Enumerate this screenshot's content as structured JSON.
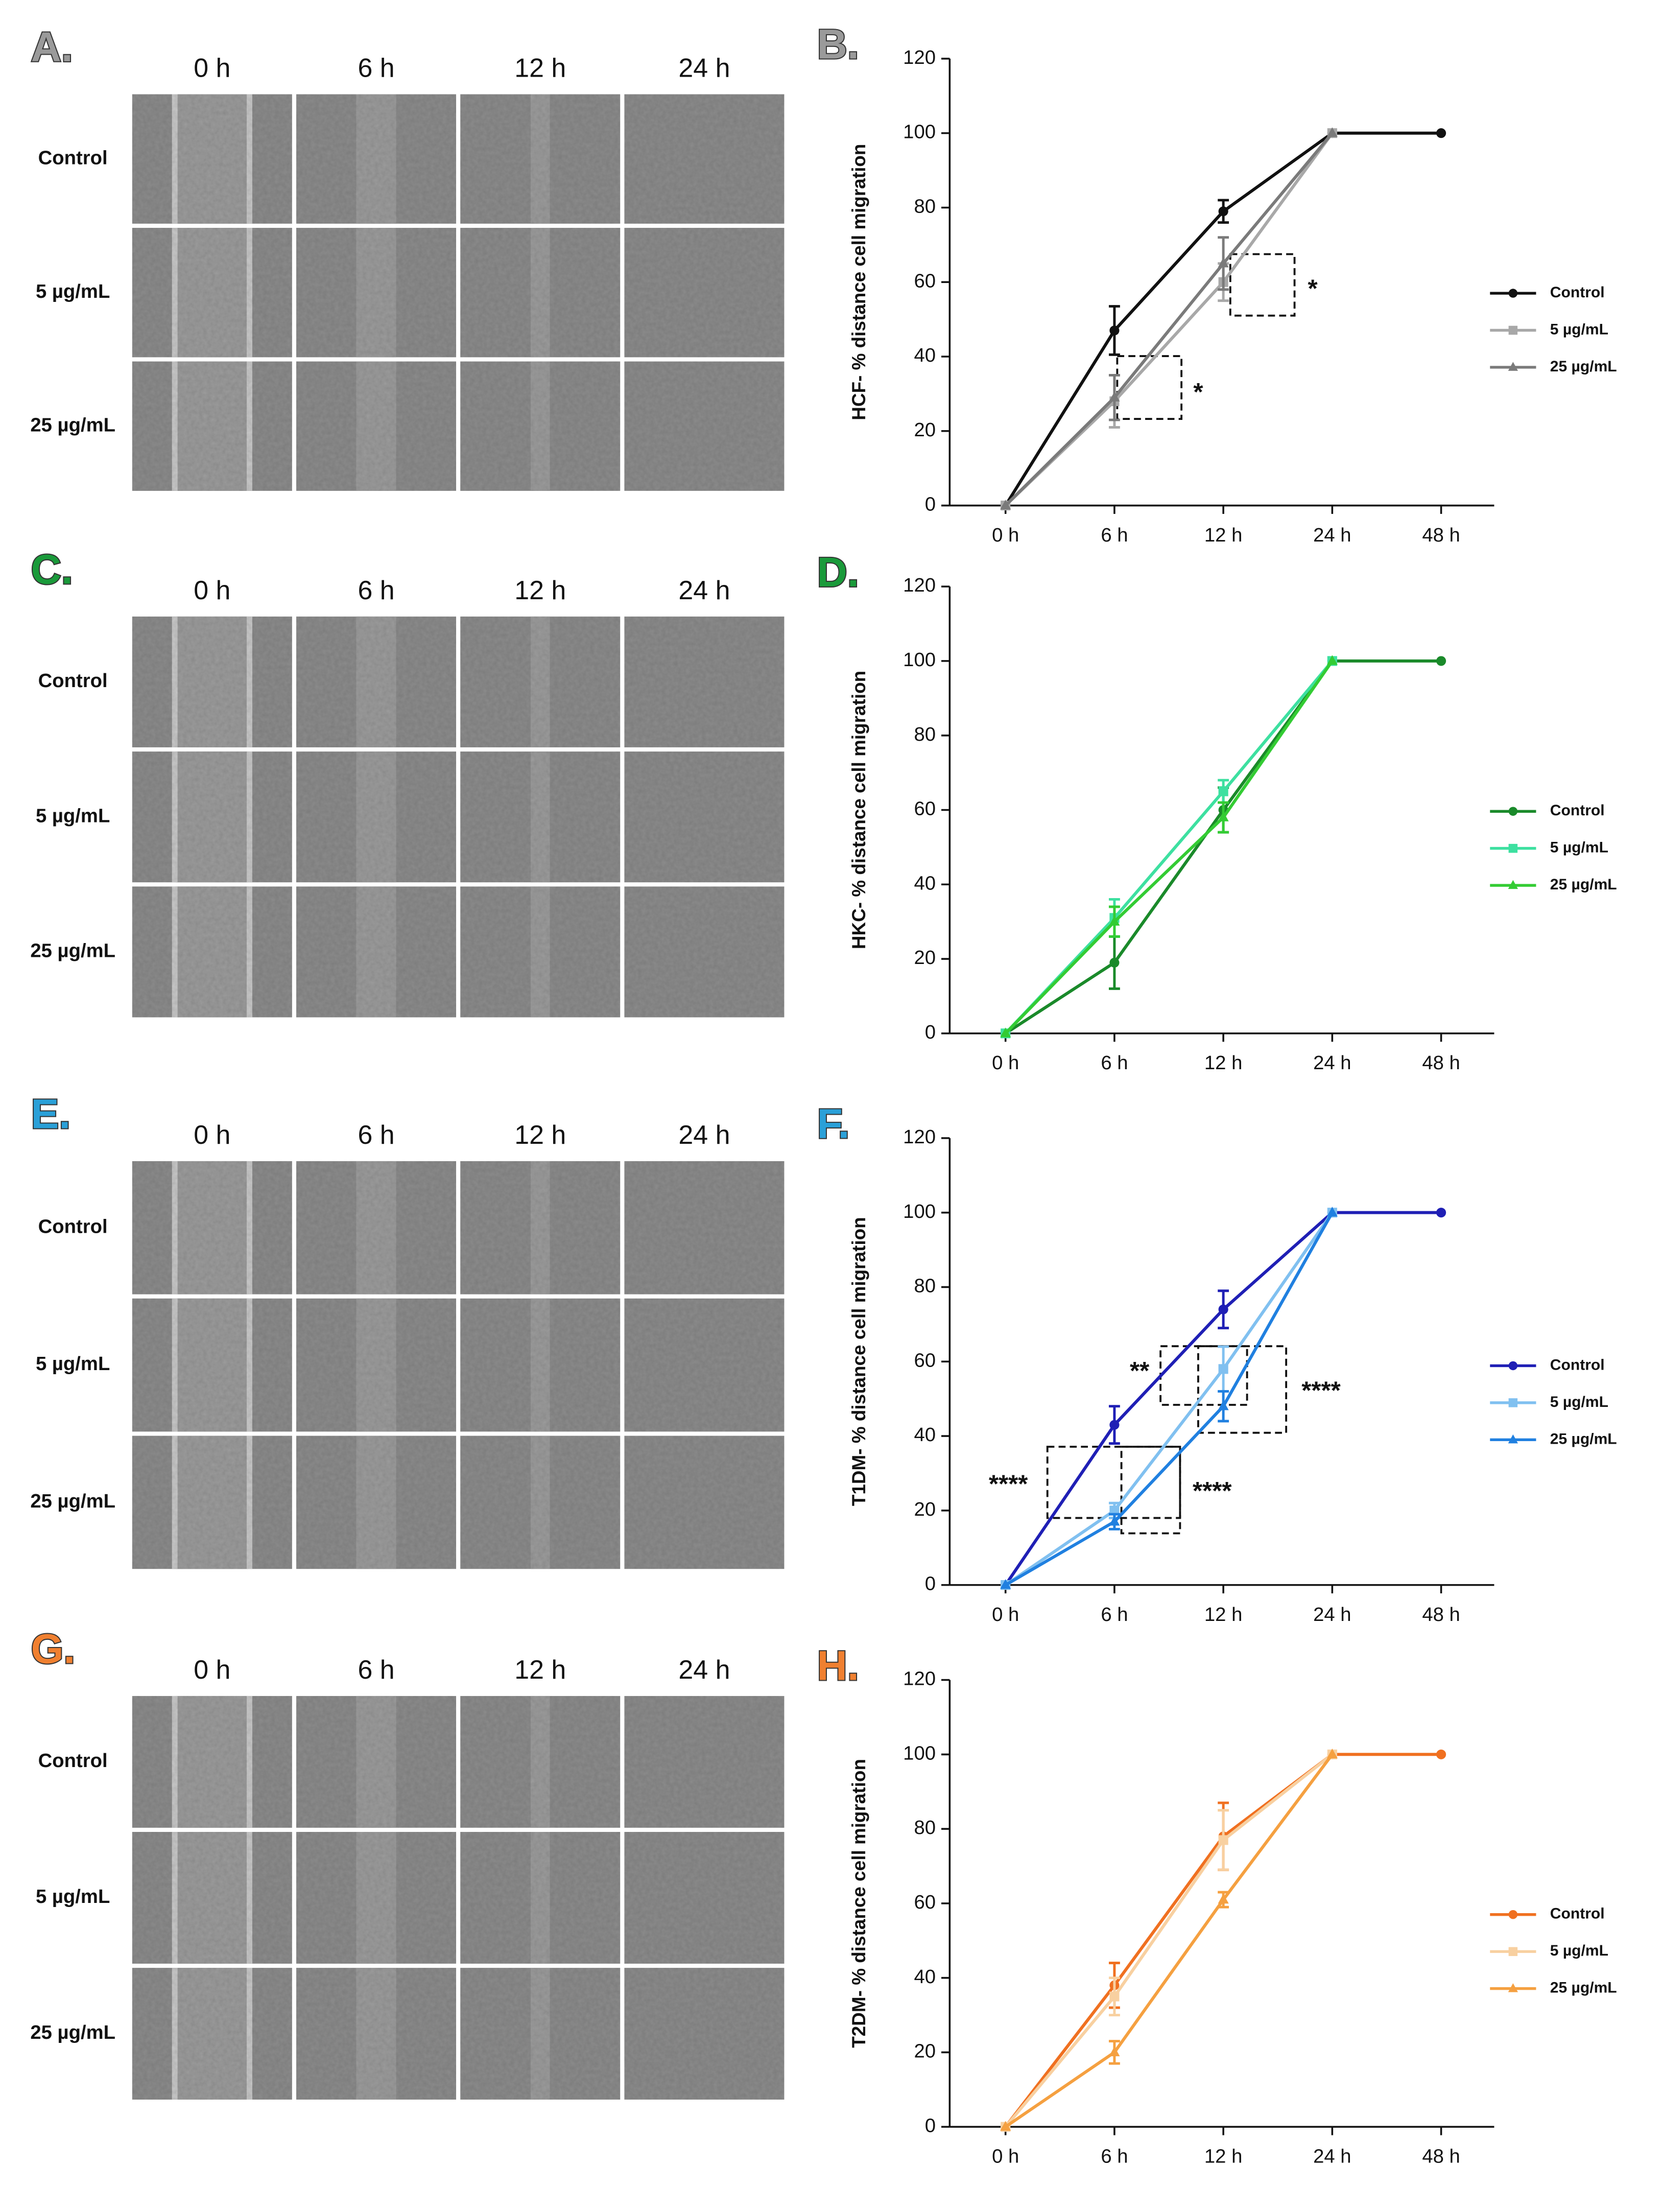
{
  "panels": [
    {
      "title": "A.",
      "columns": [
        "0 h",
        "6 h",
        "12 h",
        "24 h"
      ],
      "rows": [
        "Control",
        "5 µg/mL",
        "25 µg/mL"
      ]
    },
    {
      "title": "C.",
      "columns": [
        "0 h",
        "6 h",
        "12 h",
        "24 h"
      ],
      "rows": [
        "Control",
        "5 µg/mL",
        "25 µg/mL"
      ]
    },
    {
      "title": "E.",
      "columns": [
        "0 h",
        "6 h",
        "12 h",
        "24 h"
      ],
      "rows": [
        "Control",
        "5 µg/mL",
        "25 µg/mL"
      ]
    },
    {
      "title": "G.",
      "columns": [
        "0 h",
        "6 h",
        "12 h",
        "24 h"
      ],
      "rows": [
        "Control",
        "5 µg/mL",
        "25 µg/mL"
      ]
    }
  ],
  "chart_data": [
    {
      "type": "line",
      "title": "B.",
      "ylabel": "HCF- % distance cell migration",
      "categories": [
        "0 h",
        "6 h",
        "12 h",
        "24 h",
        "48 h"
      ],
      "ylim": [
        0,
        120
      ],
      "yticks": [
        0,
        20,
        40,
        60,
        80,
        100,
        120
      ],
      "series": [
        {
          "name": "Control",
          "color": "#111111",
          "marker": "circle",
          "values": [
            0,
            47,
            79,
            100,
            100
          ],
          "errors": [
            0,
            6.5,
            3,
            0,
            0
          ]
        },
        {
          "name": "5 µg/mL",
          "color": "#a8a8a8",
          "marker": "square",
          "values": [
            0,
            28,
            60,
            100,
            null
          ],
          "errors": [
            0,
            7,
            5,
            0,
            null
          ]
        },
        {
          "name": "25 µg/mL",
          "color": "#7a7a7a",
          "marker": "triangle",
          "values": [
            0,
            29,
            65,
            100,
            null
          ],
          "errors": [
            0,
            6,
            7,
            0,
            null
          ]
        }
      ],
      "annotations": [
        "*",
        "*"
      ]
    },
    {
      "type": "line",
      "title": "D.",
      "ylabel": "HKC- % distance cell migration",
      "categories": [
        "0 h",
        "6 h",
        "12 h",
        "24 h",
        "48 h"
      ],
      "ylim": [
        0,
        120
      ],
      "yticks": [
        0,
        20,
        40,
        60,
        80,
        100,
        120
      ],
      "series": [
        {
          "name": "Control",
          "color": "#1a8a2a",
          "marker": "circle",
          "values": [
            0,
            19,
            60,
            100,
            100
          ],
          "errors": [
            0,
            7,
            6,
            0,
            0
          ]
        },
        {
          "name": "5 µg/mL",
          "color": "#3de0a0",
          "marker": "square",
          "values": [
            0,
            31,
            65,
            100,
            null
          ],
          "errors": [
            0,
            5,
            3,
            0,
            null
          ]
        },
        {
          "name": "25 µg/mL",
          "color": "#33cc33",
          "marker": "triangle",
          "values": [
            0,
            30,
            58,
            100,
            null
          ],
          "errors": [
            0,
            4,
            4,
            0,
            null
          ]
        }
      ],
      "annotations": []
    },
    {
      "type": "line",
      "title": "F.",
      "ylabel": "T1DM- % distance cell migration",
      "categories": [
        "0 h",
        "6 h",
        "12 h",
        "24 h",
        "48 h"
      ],
      "ylim": [
        0,
        120
      ],
      "yticks": [
        0,
        20,
        40,
        60,
        80,
        100,
        120
      ],
      "series": [
        {
          "name": "Control",
          "color": "#1f1fb5",
          "marker": "circle",
          "values": [
            0,
            43,
            74,
            100,
            100
          ],
          "errors": [
            0,
            5,
            5,
            0,
            0
          ]
        },
        {
          "name": "5 µg/mL",
          "color": "#80c0f0",
          "marker": "square",
          "values": [
            0,
            20,
            58,
            100,
            null
          ],
          "errors": [
            0,
            2,
            6,
            0,
            null
          ]
        },
        {
          "name": "25 µg/mL",
          "color": "#2080e0",
          "marker": "triangle",
          "values": [
            0,
            17,
            48,
            100,
            null
          ],
          "errors": [
            0,
            2,
            4,
            0,
            null
          ]
        }
      ],
      "annotations": [
        "**",
        "****",
        "****",
        "****"
      ]
    },
    {
      "type": "line",
      "title": "H.",
      "ylabel": "T2DM- % distance cell migration",
      "categories": [
        "0 h",
        "6 h",
        "12 h",
        "24 h",
        "48 h"
      ],
      "ylim": [
        0,
        120
      ],
      "yticks": [
        0,
        20,
        40,
        60,
        80,
        100,
        120
      ],
      "series": [
        {
          "name": "Control",
          "color": "#f07020",
          "marker": "circle",
          "values": [
            0,
            38,
            78,
            100,
            100
          ],
          "errors": [
            0,
            6,
            9,
            0,
            0
          ]
        },
        {
          "name": "5 µg/mL",
          "color": "#f8d0a0",
          "marker": "square",
          "values": [
            0,
            35,
            77,
            100,
            null
          ],
          "errors": [
            0,
            5,
            8,
            0,
            null
          ]
        },
        {
          "name": "25 µg/mL",
          "color": "#f5a040",
          "marker": "triangle",
          "values": [
            0,
            20,
            61,
            100,
            null
          ],
          "errors": [
            0,
            3,
            2,
            0,
            null
          ]
        }
      ],
      "annotations": []
    }
  ]
}
